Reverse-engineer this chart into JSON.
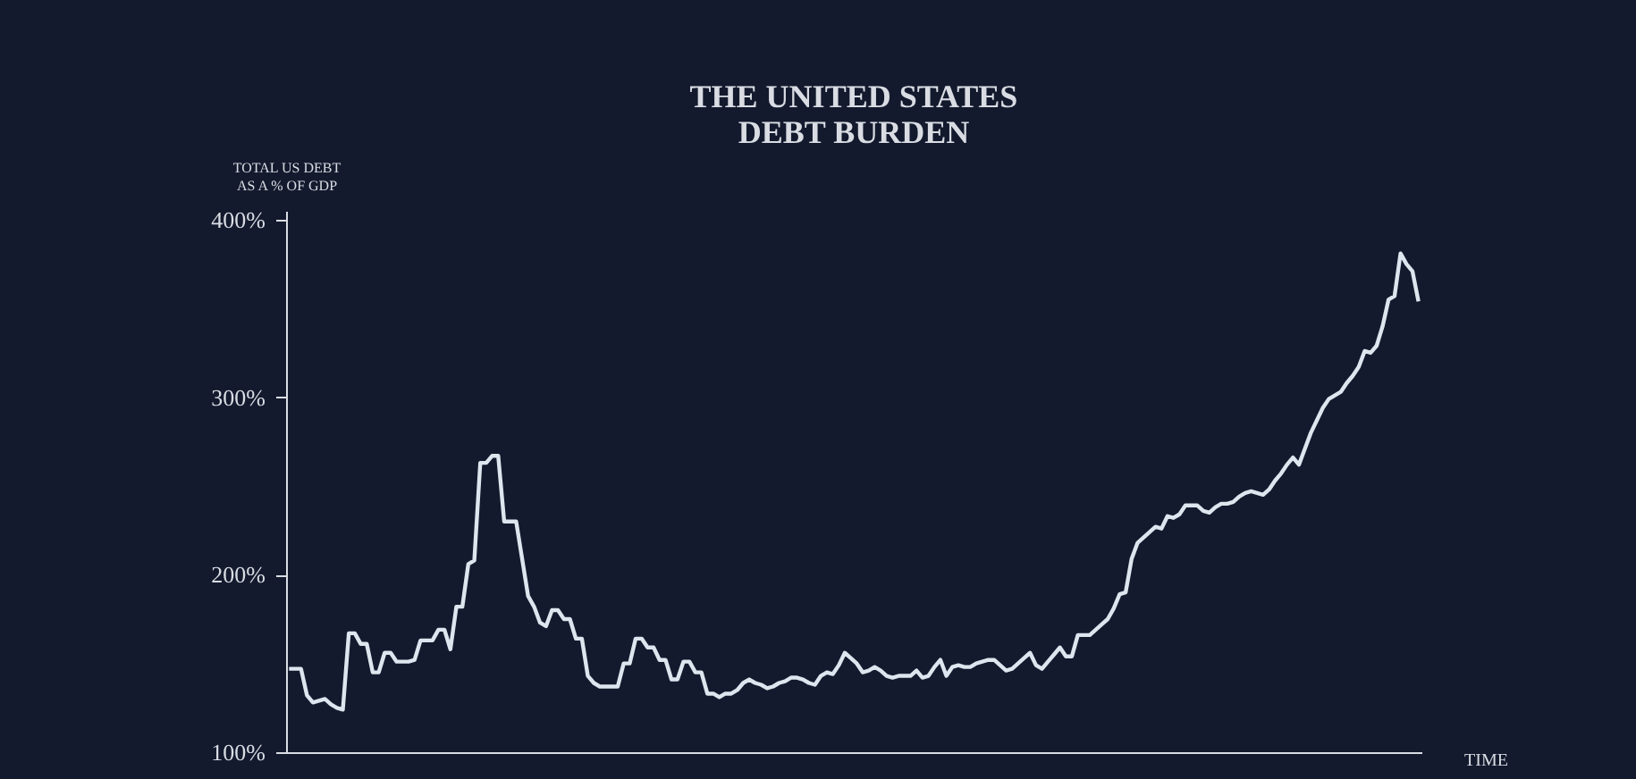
{
  "chart_data": {
    "type": "line",
    "title": "THE UNITED STATES\nDEBT BURDEN",
    "ylabel": "TOTAL US DEBT\nAS A % OF GDP",
    "xlabel": "TIME",
    "categories": [
      null,
      null,
      null,
      null,
      null,
      null,
      null,
      null,
      null,
      null,
      null,
      null,
      null,
      null,
      null,
      null,
      null,
      null,
      null,
      null,
      null,
      null,
      null,
      null,
      null,
      null,
      null,
      null,
      null,
      null,
      null,
      null,
      null,
      null,
      null,
      null,
      null,
      null,
      null,
      null,
      null,
      null,
      null,
      null,
      null,
      null,
      null,
      null,
      null,
      null,
      null,
      null,
      null,
      null,
      null,
      null,
      null,
      null,
      null,
      null,
      null,
      null,
      null,
      null,
      null,
      null,
      null,
      null,
      null,
      null,
      null,
      null,
      null,
      null,
      null,
      null,
      null,
      null,
      null,
      null,
      null,
      null,
      null,
      null,
      null,
      null,
      null,
      null,
      null,
      null,
      null,
      null,
      null,
      null,
      null,
      null,
      null,
      null,
      null,
      null,
      null,
      null,
      null,
      null,
      null,
      null,
      null,
      null,
      null,
      null,
      null,
      null,
      null,
      null,
      null,
      null,
      null,
      null,
      null,
      null,
      null,
      null,
      null,
      null,
      null,
      null,
      null,
      null,
      null,
      null,
      null,
      null,
      null,
      null,
      null,
      null,
      null,
      null,
      null,
      null,
      null,
      null,
      null,
      null,
      null,
      null,
      null,
      null,
      null,
      null,
      null,
      null,
      null,
      null,
      null,
      null,
      null,
      null,
      null,
      null,
      null,
      null,
      null,
      null,
      null,
      null,
      null,
      null,
      null,
      null,
      null,
      null,
      null,
      null,
      null,
      null,
      null,
      null,
      null,
      null,
      null,
      null,
      null,
      null,
      null,
      null,
      null,
      null,
      null,
      null
    ],
    "ylim": [
      100,
      405
    ],
    "yticks": [
      {
        "value": 100,
        "label": "100%"
      },
      {
        "value": 200,
        "label": "200%"
      },
      {
        "value": 300,
        "label": "300%"
      },
      {
        "value": 400,
        "label": "400%"
      }
    ],
    "tick_labels": "y",
    "grid": false,
    "marker": "none",
    "line_style": "solid",
    "series": [
      {
        "color": "#dde6ee",
        "values": [
          147,
          147,
          147,
          132,
          128,
          129,
          130,
          127,
          125,
          124,
          167,
          167,
          161,
          161,
          145,
          145,
          156,
          156,
          151,
          151,
          151,
          152,
          163,
          163,
          163,
          169,
          169,
          158,
          182,
          182,
          206,
          208,
          263,
          263,
          267,
          267,
          230,
          230,
          230,
          209,
          188,
          182,
          173,
          171,
          180,
          180,
          175,
          175,
          164,
          164,
          143,
          139,
          137,
          137,
          137,
          137,
          150,
          150,
          164,
          164,
          159,
          159,
          152,
          152,
          141,
          141,
          151,
          151,
          145,
          145,
          133,
          133,
          131,
          133,
          133,
          135,
          139,
          141,
          139,
          138,
          136,
          137,
          139,
          140,
          142,
          142,
          141,
          139,
          138,
          143,
          145,
          144,
          149,
          156,
          153,
          150,
          145,
          146,
          148,
          146,
          143,
          142,
          143,
          143,
          143,
          146,
          142,
          143,
          148,
          152,
          143,
          148,
          149,
          148,
          148,
          150,
          151,
          152,
          152,
          149,
          146,
          147,
          150,
          153,
          156,
          149,
          147,
          151,
          155,
          159,
          154,
          154,
          166,
          166,
          166,
          169,
          172,
          175,
          181,
          189,
          190,
          209,
          218,
          221,
          224,
          227,
          226,
          233,
          232,
          234,
          239,
          239,
          239,
          236,
          235,
          238,
          240,
          240,
          241,
          244,
          246,
          247,
          246,
          245,
          248,
          253,
          257,
          262,
          266,
          262,
          271,
          280,
          287,
          294,
          299,
          301,
          303,
          308,
          312,
          317,
          326,
          325,
          329,
          340,
          355,
          357,
          381,
          375,
          371,
          354
        ]
      }
    ]
  }
}
